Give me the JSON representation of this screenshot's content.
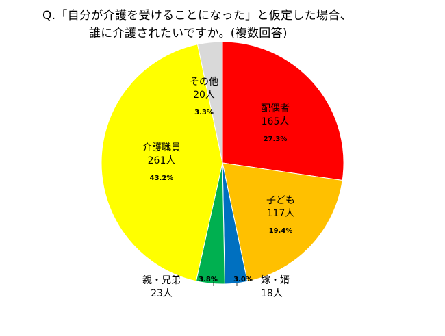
{
  "chart_data": {
    "type": "pie",
    "title_line1": "Q.「自分が介護を受けることになった」と仮定した場合、",
    "title_line2": "誰に介護されたいですか。(複数回答)",
    "slices": [
      {
        "name": "配偶者",
        "count": "165人",
        "percent": "27.3%",
        "value": 27.3,
        "color": "#ff0000"
      },
      {
        "name": "子ども",
        "count": "117人",
        "percent": "19.4%",
        "value": 19.4,
        "color": "#ffc000"
      },
      {
        "name": "嫁・婿",
        "count": "18人",
        "percent": "3.0%",
        "value": 3.0,
        "color": "#0070c0"
      },
      {
        "name": "親・兄弟",
        "count": "23人",
        "percent": "3.8%",
        "value": 3.8,
        "color": "#00b050"
      },
      {
        "name": "介護職員",
        "count": "261人",
        "percent": "43.2%",
        "value": 43.2,
        "color": "#ffff00"
      },
      {
        "name": "その他",
        "count": "20人",
        "percent": "3.3%",
        "value": 3.3,
        "color": "#d9d9d9"
      }
    ]
  }
}
